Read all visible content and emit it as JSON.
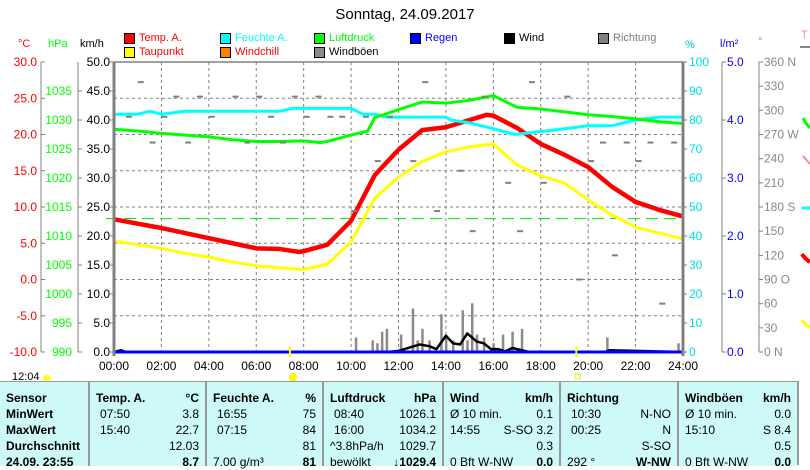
{
  "title": "Sonntag, 24.09.2017",
  "axis_units": {
    "temp": "°C",
    "pressure": "hPa",
    "wind": "km/h",
    "humidity": "%",
    "rain": "l/m²",
    "direction": "°",
    "trend": "T"
  },
  "legend": [
    {
      "label": "Temp. A.",
      "color": "#ff0000",
      "text_color": "#ff0000"
    },
    {
      "label": "Taupunkt",
      "color": "#ffff00",
      "text_color": "#ff0000"
    },
    {
      "label": "Feuchte A.",
      "color": "#00ffff",
      "text_color": "#00ffff"
    },
    {
      "label": "Windchill",
      "color": "#ff8000",
      "text_color": "#ff0000"
    },
    {
      "label": "Luftdruck",
      "color": "#00ff00",
      "text_color": "#00ff00"
    },
    {
      "label": "Windböen",
      "color": "#908890",
      "text_color": "#000000"
    },
    {
      "label": "Regen",
      "color": "#0000ff",
      "text_color": "#0000ff"
    },
    {
      "label": "Wind",
      "color": "#000000",
      "text_color": "#000000"
    },
    {
      "label": "Richtung",
      "color": "#808080",
      "text_color": "#808080"
    }
  ],
  "current_time": "12:04",
  "chart_data": {
    "type": "line",
    "title": "Sonntag, 24.09.2017",
    "x_ticks": [
      "00:00",
      "02:00",
      "04:00",
      "06:00",
      "08:00",
      "10:00",
      "12:00",
      "14:00",
      "16:00",
      "18:00",
      "20:00",
      "22:00",
      "24:00"
    ],
    "xlim_hours": [
      0,
      24
    ],
    "axes": {
      "temp": {
        "range": [
          -10,
          30
        ],
        "ticks": [
          "-10.0",
          "-5.0",
          "0.0",
          "5.0",
          "10.0",
          "15.0",
          "20.0",
          "25.0",
          "30.0"
        ]
      },
      "pressure": {
        "range": [
          990,
          1040
        ],
        "ticks": [
          "990",
          "995",
          "1000",
          "1005",
          "1010",
          "1015",
          "1020",
          "1025",
          "1030",
          "1035"
        ]
      },
      "wind": {
        "range": [
          0,
          50
        ],
        "ticks": [
          "0.0",
          "5.0",
          "10.0",
          "15.0",
          "20.0",
          "25.0",
          "30.0",
          "35.0",
          "40.0",
          "45.0",
          "50.0"
        ]
      },
      "humidity": {
        "range": [
          0,
          100
        ],
        "ticks": [
          "0",
          "10",
          "20",
          "30",
          "40",
          "50",
          "60",
          "70",
          "80",
          "90",
          "100"
        ]
      },
      "rain": {
        "range": [
          0,
          5
        ],
        "ticks": [
          "0.0",
          "1.0",
          "2.0",
          "3.0",
          "4.0",
          "5.0"
        ]
      },
      "direction": {
        "range": [
          0,
          360
        ],
        "ticks": [
          "0   N",
          "30",
          "60",
          "90  O",
          "120",
          "150",
          "180 S",
          "210",
          "240",
          "270 W",
          "300",
          "330",
          "360 N"
        ]
      }
    },
    "reference_line_hpa": 1013,
    "grid": true,
    "series": [
      {
        "name": "Temp. A.",
        "axis": "temp",
        "color": "#ff0000",
        "x": [
          0,
          1,
          2,
          3,
          4,
          5,
          6,
          7,
          7.8,
          8,
          9,
          10,
          11,
          12,
          13,
          14,
          15,
          15.7,
          16,
          17,
          18,
          19,
          20,
          21,
          22,
          23,
          24
        ],
        "y": [
          8.3,
          7.7,
          7.1,
          6.4,
          5.7,
          5.0,
          4.3,
          4.2,
          3.8,
          3.9,
          4.8,
          8.1,
          14.4,
          17.9,
          20.6,
          21.0,
          22.0,
          22.7,
          22.6,
          20.9,
          18.7,
          17.2,
          15.5,
          12.8,
          10.7,
          9.6,
          8.7
        ]
      },
      {
        "name": "Taupunkt",
        "axis": "temp",
        "color": "#ffff00",
        "x": [
          0,
          1,
          2,
          3,
          4,
          5,
          6,
          7,
          8,
          9,
          10,
          11,
          12,
          13,
          14,
          15,
          16,
          17,
          18,
          19,
          20,
          21,
          22,
          23,
          24
        ],
        "y": [
          5.3,
          4.8,
          4.3,
          3.6,
          3.1,
          2.4,
          1.9,
          1.6,
          1.4,
          2.1,
          5.2,
          11.2,
          14.1,
          16.3,
          17.6,
          18.3,
          18.7,
          15.8,
          14.3,
          13.3,
          11.0,
          8.9,
          7.2,
          6.4,
          5.6
        ]
      },
      {
        "name": "Feuchte A.",
        "axis": "humidity",
        "color": "#00ffff",
        "x": [
          0,
          1,
          1.5,
          2,
          3,
          4,
          5,
          6,
          7,
          7.5,
          8,
          9,
          10,
          10.5,
          11,
          11.5,
          12,
          13,
          14,
          14.2,
          15,
          16,
          16.9,
          18,
          19,
          20,
          21,
          22,
          23,
          24
        ],
        "y": [
          82,
          82,
          83,
          82,
          83,
          83,
          83,
          83,
          83,
          84,
          84,
          84,
          84,
          82,
          82,
          81,
          81,
          81,
          81,
          80,
          79,
          77,
          75,
          76,
          77,
          78,
          78,
          80,
          81,
          81
        ]
      },
      {
        "name": "Luftdruck",
        "axis": "pressure",
        "color": "#00ff00",
        "x": [
          0,
          1,
          2,
          3,
          4,
          5,
          6,
          7,
          8,
          8.7,
          9,
          10,
          10.7,
          11,
          12,
          13,
          14,
          15,
          16,
          17,
          18,
          19,
          20,
          21,
          22,
          23,
          24
        ],
        "y": [
          1028.4,
          1028.1,
          1027.7,
          1027.4,
          1027.1,
          1026.6,
          1026.3,
          1026.3,
          1026.4,
          1026.1,
          1026.3,
          1027.4,
          1028.1,
          1030.4,
          1031.8,
          1033.1,
          1032.9,
          1033.4,
          1034.2,
          1032.2,
          1031.9,
          1031.4,
          1030.9,
          1030.6,
          1030.2,
          1029.7,
          1029.4
        ]
      },
      {
        "name": "Windböen",
        "axis": "wind",
        "color": "#908890",
        "kind": "bars",
        "x": [
          10.2,
          10.9,
          11.1,
          11.3,
          11.5,
          12.1,
          12.6,
          12.8,
          13.0,
          13.3,
          13.8,
          14.0,
          14.3,
          14.7,
          14.9,
          15.1,
          15.3,
          15.6,
          16.0,
          16.4,
          16.8,
          17.2,
          20.8,
          23.8
        ],
        "y": [
          2.5,
          2.0,
          1.5,
          3.5,
          4.0,
          3.0,
          7.5,
          2.0,
          4.0,
          2.0,
          6.5,
          3.0,
          2.0,
          7.2,
          2.0,
          8.4,
          3.0,
          2.5,
          1.5,
          3.0,
          3.5,
          4.0,
          2.5,
          1.5
        ]
      },
      {
        "name": "Wind",
        "axis": "wind",
        "color": "#000000",
        "x": [
          0,
          0.3,
          0.5,
          10,
          11.5,
          12,
          12.5,
          12.9,
          13.3,
          13.6,
          14.0,
          14.3,
          14.6,
          14.9,
          15.3,
          15.6,
          15.9,
          16.2,
          16.5,
          16.8,
          17.2,
          17.5,
          20.7,
          20.9,
          24
        ],
        "y": [
          0,
          0.3,
          0,
          0,
          0,
          0.2,
          0.8,
          1.3,
          1.0,
          0.5,
          2.8,
          1.5,
          1.3,
          3.2,
          1.8,
          1.5,
          0.5,
          0.5,
          0.1,
          0.7,
          0.3,
          0,
          0,
          0.3,
          0
        ]
      },
      {
        "name": "Regen",
        "axis": "rain",
        "color": "#0000ff",
        "x": [
          0,
          24
        ],
        "y": [
          0,
          0
        ]
      },
      {
        "name": "Richtung",
        "axis": "direction",
        "color": "#808080",
        "kind": "dots",
        "x": [
          1,
          2.5,
          3.5,
          5,
          6,
          7.5,
          8.5,
          9.5,
          10.5,
          11.5,
          13,
          15.5,
          17.5,
          19,
          20.5,
          21.5,
          22.5,
          23.5,
          0.5,
          2,
          4,
          6.5,
          8,
          9,
          11,
          12.5,
          14.5,
          16.5,
          18,
          20,
          22,
          1.5,
          3,
          5.5,
          7,
          10,
          13.5,
          15,
          17,
          19.5,
          21,
          23
        ],
        "y": [
          335,
          317,
          317,
          317,
          317,
          317,
          317,
          292,
          292,
          292,
          335,
          317,
          335,
          317,
          260,
          260,
          260,
          260,
          292,
          292,
          292,
          292,
          292,
          292,
          237,
          237,
          225,
          210,
          210,
          237,
          237,
          260,
          260,
          260,
          260,
          175,
          175,
          150,
          150,
          90,
          120,
          60
        ]
      }
    ],
    "sunrise_hour": 7.42,
    "sunset_hour": 19.5
  },
  "table": {
    "columns": [
      {
        "header": "Sensor",
        "unit": "",
        "rows": [
          {
            "l": "MinWert",
            "r": ""
          },
          {
            "l": "MaxWert",
            "r": ""
          },
          {
            "l": "Durchschnitt",
            "r": ""
          },
          {
            "l": "24.09. 23:55",
            "r": ""
          }
        ]
      },
      {
        "header": "Temp. A.",
        "unit": "°C",
        "rows": [
          {
            "l": "07:50",
            "r": "3.8"
          },
          {
            "l": "15:40",
            "r": "22.7"
          },
          {
            "l": "",
            "r": "12.03"
          },
          {
            "l": "",
            "r": "8.7"
          }
        ]
      },
      {
        "header": "Feuchte A.",
        "unit": "%",
        "rows": [
          {
            "l": "16:55",
            "r": "75"
          },
          {
            "l": "07:15",
            "r": "84"
          },
          {
            "l": "",
            "r": "81"
          },
          {
            "l": "7.00 g/m³",
            "r": "81"
          }
        ]
      },
      {
        "header": "Luftdruck",
        "unit": "hPa",
        "rows": [
          {
            "l": "08:40",
            "r": "1026.1"
          },
          {
            "l": "16:00",
            "r": "1034.2"
          },
          {
            "l": "^3.8hPa/h",
            "r": "1029.7"
          },
          {
            "l": "bewölkt",
            "r": "↓1029.4"
          }
        ]
      },
      {
        "header": "Wind",
        "unit": "km/h",
        "rows": [
          {
            "l": "Ø 10 min.",
            "r": "0.1"
          },
          {
            "l": "14:55",
            "r": "S-SO 3.2"
          },
          {
            "l": "",
            "r": "0.3"
          },
          {
            "l": "0 Bft W-NW",
            "r": "0.0"
          }
        ]
      },
      {
        "header": "Richtung",
        "unit": "",
        "rows": [
          {
            "l": "10:30",
            "r": "N-NO"
          },
          {
            "l": "00:25",
            "r": "N"
          },
          {
            "l": "",
            "r": "S-SO"
          },
          {
            "l": "292 °",
            "r": "W-NW"
          }
        ]
      },
      {
        "header": "Windböen",
        "unit": "km/h",
        "rows": [
          {
            "l": "Ø 10 min.",
            "r": "0.0"
          },
          {
            "l": "15:10",
            "r": "S 8.4"
          },
          {
            "l": "",
            "r": "0.5"
          },
          {
            "l": "0 Bft W-NW",
            "r": "0.0"
          }
        ]
      }
    ]
  }
}
